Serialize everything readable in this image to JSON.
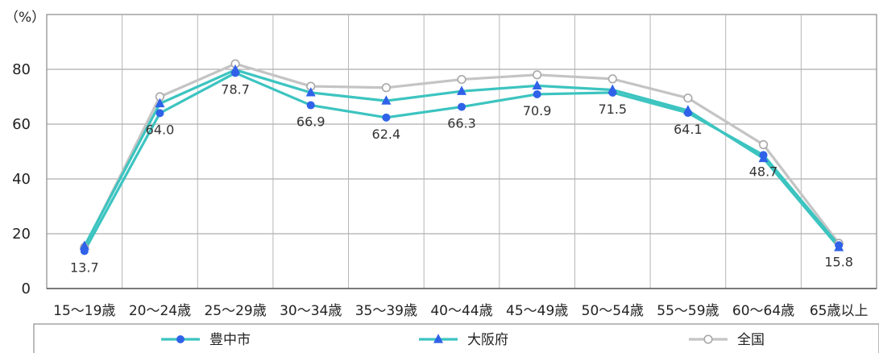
{
  "chart_data": {
    "type": "line",
    "y_unit_label": "（%）",
    "ylim": [
      0,
      100
    ],
    "yticks": [
      0,
      20,
      40,
      60,
      80
    ],
    "grid": true,
    "categories": [
      "15～19歳",
      "20～24歳",
      "25～29歳",
      "30～34歳",
      "35～39歳",
      "40～44歳",
      "45～49歳",
      "50～54歳",
      "55～59歳",
      "60～64歳",
      "65歳以上"
    ],
    "series": [
      {
        "name": "豊中市",
        "color": "#2f62e8",
        "line_color": "#3cc4c0",
        "marker": "circle",
        "values": [
          13.7,
          64.0,
          78.7,
          66.9,
          62.4,
          66.3,
          70.9,
          71.5,
          64.1,
          48.7,
          15.8
        ]
      },
      {
        "name": "大阪府",
        "color": "#2f62e8",
        "line_color": "#3cc4c0",
        "marker": "triangle",
        "values": [
          15.5,
          67.5,
          79.8,
          71.5,
          68.5,
          72.0,
          74.0,
          72.5,
          65.0,
          47.5,
          15.0
        ]
      },
      {
        "name": "全国",
        "color": "#c4c4c4",
        "line_color": "#c4c4c4",
        "marker": "open-circle",
        "values": [
          15.0,
          70.0,
          82.0,
          73.8,
          73.3,
          76.3,
          78.0,
          76.5,
          69.5,
          52.5,
          16.5
        ]
      }
    ],
    "data_labels": [
      {
        "index": 0,
        "text": "13.7",
        "value": 13.7,
        "pos": "below"
      },
      {
        "index": 1,
        "text": "64.0",
        "value": 64.0,
        "pos": "below"
      },
      {
        "index": 2,
        "text": "78.7",
        "value": 78.7,
        "pos": "below"
      },
      {
        "index": 3,
        "text": "66.9",
        "value": 66.9,
        "pos": "below"
      },
      {
        "index": 4,
        "text": "62.4",
        "value": 62.4,
        "pos": "below"
      },
      {
        "index": 5,
        "text": "66.3",
        "value": 66.3,
        "pos": "below"
      },
      {
        "index": 6,
        "text": "70.9",
        "value": 70.9,
        "pos": "below"
      },
      {
        "index": 7,
        "text": "71.5",
        "value": 71.5,
        "pos": "below"
      },
      {
        "index": 8,
        "text": "64.1",
        "value": 64.1,
        "pos": "below"
      },
      {
        "index": 9,
        "text": "48.7",
        "value": 48.7,
        "pos": "below"
      },
      {
        "index": 10,
        "text": "15.8",
        "value": 15.8,
        "pos": "below"
      }
    ],
    "legend_position": "bottom"
  }
}
